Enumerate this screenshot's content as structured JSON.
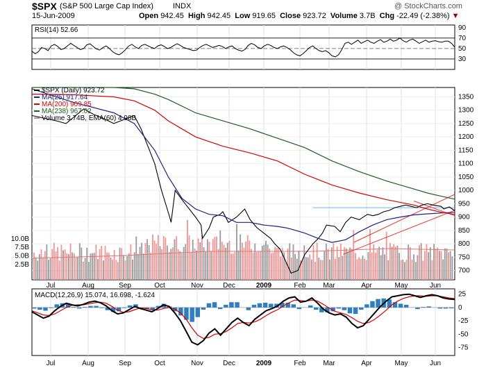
{
  "header": {
    "symbol": "$SPX",
    "name": "(S&P 500 Large Cap Index)",
    "exchange": "INDX",
    "watermark": "@ StockCharts.com",
    "date": "15-Jun-2009",
    "open_label": "Open",
    "open": "942.45",
    "high_label": "High",
    "high": "942.45",
    "low_label": "Low",
    "low": "919.65",
    "close_label": "Close",
    "close": "923.72",
    "volume_label": "Volume",
    "volume": "3.7B",
    "chg_label": "Chg",
    "chg": "-22.49 (-2.38%)"
  },
  "colors": {
    "price": "#000000",
    "ma25": "#1a237e",
    "ma200": "#d50000",
    "ma238": "#1b5e20",
    "trend": "#e53935",
    "support": "#64b5f6",
    "vol_up": "#9e9e9e",
    "vol_down": "#ef9a9a",
    "macd_hist": "#2f7fbf",
    "rsi_line": "#000000"
  },
  "chart_data": [
    {
      "type": "line",
      "title": "RSI(14) 52.66",
      "series": [
        {
          "name": "RSI(14)",
          "last": 52.66,
          "values": [
            45,
            40,
            44,
            52,
            50,
            46,
            55,
            58,
            54,
            48,
            50,
            55,
            60,
            56,
            52,
            48,
            50,
            57,
            59,
            54,
            49,
            47,
            52,
            55,
            50,
            44,
            40,
            38,
            42,
            48,
            55,
            58,
            53,
            50,
            56,
            58,
            55,
            52,
            50,
            55,
            57,
            54,
            50,
            52,
            56,
            59,
            56,
            52,
            50,
            48,
            46,
            47,
            52,
            56,
            58,
            55,
            52,
            54,
            56,
            54,
            50,
            53,
            55,
            50,
            47,
            45,
            48,
            56,
            60,
            57,
            52,
            50,
            55,
            58,
            56,
            52,
            50,
            53,
            55,
            52,
            48,
            42,
            38,
            36,
            40,
            46,
            52,
            55,
            50,
            46,
            44,
            46,
            42,
            36,
            34,
            38,
            48,
            60,
            62,
            58,
            62,
            66,
            60,
            63,
            66,
            62,
            60,
            64,
            67,
            62,
            64,
            68,
            64,
            66,
            70,
            65,
            62,
            66,
            68,
            64,
            60,
            63,
            66,
            62,
            64,
            65,
            63,
            62,
            64,
            64,
            60,
            52.66
          ]
        }
      ],
      "ylim": [
        10,
        95
      ],
      "y_ticks": [
        30,
        50,
        70,
        90
      ],
      "reference_lines": [
        30,
        50,
        70
      ]
    },
    {
      "type": "line",
      "title": "$SPX (Daily) 923.72",
      "legend": [
        "$SPX (Daily) 923.72",
        "MA(25) 917.64",
        "MA(200) 909.85",
        "MA(238) 967.02",
        "Volume 3.74B, EMA(60) 4.98B"
      ],
      "x_ticks": [
        "Jul",
        "Aug",
        "Sep",
        "Oct",
        "Nov",
        "Dec",
        "2009",
        "Feb",
        "Mar",
        "Apr",
        "May",
        "Jun"
      ],
      "y_ticks": [
        700,
        750,
        800,
        850,
        900,
        950,
        1000,
        1050,
        1100,
        1150,
        1200,
        1250,
        1300,
        1350
      ],
      "ylim": [
        665,
        1385
      ],
      "volume_ticks": [
        "2.5B",
        "5.0B",
        "7.5B",
        "10.0B"
      ],
      "series": [
        {
          "name": "$SPX (Daily)",
          "x_days": [
            0,
            18,
            25,
            38,
            45,
            52,
            60,
            75,
            80,
            90,
            95,
            101,
            102,
            105,
            110,
            120,
            124,
            125,
            130,
            133,
            138,
            140,
            144,
            150,
            156,
            160,
            165,
            170,
            175,
            178,
            182,
            190,
            195,
            200,
            206,
            210,
            213,
            216,
            222,
            226,
            230,
            234,
            240,
            246,
            250,
            254,
            258,
            262,
            266,
            270,
            274,
            278,
            282,
            286,
            290,
            294,
            300,
            302,
            306,
            310
          ],
          "values": [
            1280,
            1260,
            1250,
            1305,
            1285,
            1270,
            1250,
            1280,
            1230,
            1100,
            1000,
            900,
            880,
            1000,
            965,
            900,
            870,
            820,
            860,
            900,
            910,
            920,
            880,
            900,
            930,
            890,
            860,
            840,
            820,
            800,
            780,
            690,
            700,
            760,
            800,
            820,
            840,
            870,
            865,
            845,
            880,
            900,
            890,
            910,
            905,
            910,
            920,
            925,
            935,
            940,
            945,
            940,
            935,
            945,
            950,
            945,
            940,
            930,
            938,
            923.72
          ]
        },
        {
          "name": "MA(25)",
          "x_days": [
            0,
            30,
            60,
            75,
            90,
            100,
            110,
            120,
            130,
            140,
            150,
            160,
            170,
            180,
            186,
            190,
            200,
            210,
            220,
            230,
            240,
            250,
            260,
            270,
            280,
            290,
            300,
            310
          ],
          "values": [
            1380,
            1330,
            1290,
            1250,
            1150,
            1050,
            970,
            930,
            910,
            905,
            880,
            880,
            870,
            865,
            860,
            855,
            840,
            820,
            805,
            815,
            845,
            870,
            890,
            900,
            908,
            912,
            915,
            917.64
          ]
        },
        {
          "name": "MA(200)",
          "x_days": [
            0,
            30,
            60,
            75,
            90,
            100,
            120,
            140,
            160,
            180,
            200,
            220,
            240,
            260,
            280,
            290,
            300,
            310
          ],
          "values": [
            1360,
            1358,
            1350,
            1335,
            1300,
            1260,
            1200,
            1165,
            1140,
            1110,
            1060,
            1020,
            990,
            965,
            945,
            930,
            918,
            909.85
          ]
        },
        {
          "name": "MA(238)",
          "x_days": [
            0,
            30,
            60,
            75,
            90,
            100,
            120,
            140,
            160,
            180,
            200,
            220,
            240,
            260,
            280,
            290,
            300,
            310
          ],
          "values": [
            1395,
            1392,
            1390,
            1380,
            1360,
            1340,
            1290,
            1260,
            1230,
            1195,
            1160,
            1110,
            1070,
            1035,
            1005,
            990,
            978,
            967.02
          ]
        }
      ]
    },
    {
      "type": "line",
      "title": "MACD(12,26,9) 15.074, 16.698, -1.624",
      "x_ticks": [
        "Jul",
        "Aug",
        "Sep",
        "Oct",
        "Nov",
        "Dec",
        "2009",
        "Feb",
        "Mar",
        "Apr",
        "May",
        "Jun"
      ],
      "y_ticks": [
        -75,
        -50,
        -25,
        0,
        25
      ],
      "ylim": [
        -90,
        35
      ],
      "series": [
        {
          "name": "MACD",
          "last": 15.074,
          "values": [
            -8,
            -14,
            -20,
            -16,
            -6,
            2,
            8,
            5,
            3,
            6,
            10,
            12,
            9,
            3,
            -6,
            -12,
            -10,
            -4,
            2,
            -2,
            -5,
            -8,
            -2,
            5,
            2,
            -10,
            -25,
            -45,
            -65,
            -70,
            -62,
            -48,
            -40,
            -52,
            -40,
            -28,
            -20,
            -28,
            -34,
            -22,
            -14,
            -6,
            -2,
            3,
            12,
            18,
            20,
            10,
            12,
            18,
            8,
            -3,
            -10,
            -14,
            -12,
            -18,
            -30,
            -38,
            -34,
            -22,
            -10,
            2,
            12,
            20,
            22,
            24,
            25,
            22,
            19,
            22,
            24,
            22,
            18,
            16,
            15.074
          ]
        },
        {
          "name": "Signal",
          "last": 16.698,
          "values": [
            -6,
            -10,
            -14,
            -15,
            -12,
            -6,
            0,
            4,
            5,
            5,
            7,
            9,
            10,
            8,
            2,
            -5,
            -9,
            -8,
            -4,
            -1,
            -2,
            -4,
            -5,
            -2,
            0,
            -3,
            -10,
            -22,
            -38,
            -52,
            -58,
            -56,
            -50,
            -49,
            -45,
            -38,
            -30,
            -28,
            -29,
            -27,
            -22,
            -15,
            -9,
            -4,
            3,
            9,
            14,
            13,
            12,
            14,
            12,
            6,
            -1,
            -7,
            -10,
            -13,
            -19,
            -26,
            -30,
            -28,
            -22,
            -14,
            -5,
            5,
            12,
            17,
            20,
            22,
            22,
            21,
            22,
            22,
            20,
            18,
            16.698
          ]
        },
        {
          "name": "Histogram",
          "last": -1.624,
          "values": [
            -2,
            -4,
            -6,
            -1,
            6,
            8,
            8,
            1,
            -2,
            1,
            3,
            3,
            -1,
            -5,
            -8,
            -7,
            -1,
            4,
            6,
            -1,
            -3,
            -4,
            3,
            7,
            2,
            -7,
            -15,
            -23,
            -27,
            -18,
            -4,
            8,
            10,
            -3,
            5,
            10,
            10,
            0,
            -5,
            5,
            8,
            9,
            7,
            7,
            9,
            9,
            6,
            -3,
            0,
            4,
            -4,
            -9,
            -9,
            -7,
            -2,
            -5,
            -11,
            -12,
            -4,
            6,
            12,
            16,
            17,
            15,
            10,
            7,
            5,
            0,
            -3,
            1,
            2,
            0,
            -2,
            -2,
            -1.624
          ]
        }
      ]
    }
  ]
}
